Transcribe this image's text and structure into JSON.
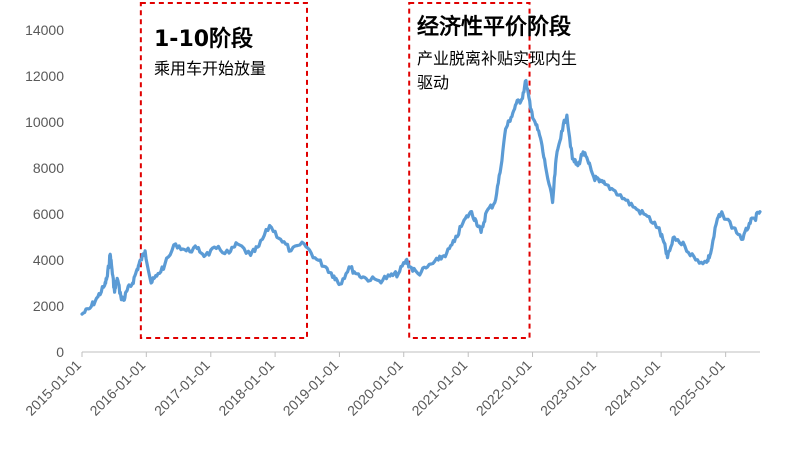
{
  "chart_data": {
    "type": "line",
    "title": "",
    "xlabel": "",
    "ylabel": "",
    "ylim": [
      0,
      14000
    ],
    "yticks": [
      0,
      2000,
      4000,
      6000,
      8000,
      10000,
      12000,
      14000
    ],
    "xlim": [
      "2015-01-01",
      "2025-07-15"
    ],
    "xticks": [
      "2015-01-01",
      "2016-01-01",
      "2017-01-01",
      "2018-01-01",
      "2019-01-01",
      "2020-01-01",
      "2021-01-01",
      "2022-01-01",
      "2023-01-01",
      "2024-01-01",
      "2025-01-01"
    ],
    "grid": false,
    "legend": "none",
    "series_color": "#5B9BD5",
    "annotation_color": "#E00000",
    "x": [
      "2015-01-01",
      "2015-02-15",
      "2015-04-01",
      "2015-05-10",
      "2015-05-25",
      "2015-06-10",
      "2015-06-20",
      "2015-07-05",
      "2015-07-20",
      "2015-08-10",
      "2015-08-26",
      "2015-09-15",
      "2015-10-15",
      "2015-11-10",
      "2015-12-01",
      "2015-12-25",
      "2016-01-28",
      "2016-02-29",
      "2016-04-15",
      "2016-06-15",
      "2016-08-15",
      "2016-10-15",
      "2016-12-01",
      "2017-02-01",
      "2017-04-15",
      "2017-06-01",
      "2017-08-15",
      "2017-10-01",
      "2017-12-01",
      "2018-02-01",
      "2018-04-01",
      "2018-06-15",
      "2018-08-15",
      "2018-10-15",
      "2018-12-01",
      "2019-01-04",
      "2019-02-25",
      "2019-04-10",
      "2019-06-01",
      "2019-08-15",
      "2019-10-15",
      "2019-12-01",
      "2020-01-15",
      "2020-02-05",
      "2020-03-23",
      "2020-05-15",
      "2020-07-15",
      "2020-09-01",
      "2020-10-15",
      "2020-12-01",
      "2021-01-15",
      "2021-02-15",
      "2021-03-15",
      "2021-04-15",
      "2021-06-01",
      "2021-07-01",
      "2021-08-01",
      "2021-09-01",
      "2021-10-01",
      "2021-11-01",
      "2021-11-25",
      "2021-12-20",
      "2022-01-15",
      "2022-02-15",
      "2022-03-15",
      "2022-04-25",
      "2022-05-15",
      "2022-06-15",
      "2022-07-15",
      "2022-08-15",
      "2022-09-15",
      "2022-10-15",
      "2022-11-15",
      "2022-12-15",
      "2023-01-15",
      "2023-02-15",
      "2023-04-15",
      "2023-06-15",
      "2023-08-15",
      "2023-10-15",
      "2023-12-15",
      "2024-01-15",
      "2024-02-06",
      "2024-03-15",
      "2024-05-15",
      "2024-07-15",
      "2024-09-15",
      "2024-10-08",
      "2024-11-15",
      "2024-12-15",
      "2025-02-15",
      "2025-04-09",
      "2025-05-15",
      "2025-06-15",
      "2025-07-15"
    ],
    "series": [
      {
        "values": [
          1650,
          1900,
          2400,
          2900,
          3300,
          4250,
          3600,
          2600,
          3200,
          2400,
          2250,
          2700,
          3000,
          3600,
          4000,
          4400,
          3000,
          3300,
          3800,
          4700,
          4400,
          4500,
          4200,
          4500,
          4300,
          4700,
          4200,
          4600,
          5500,
          4900,
          4400,
          4700,
          4100,
          3700,
          3300,
          2950,
          3700,
          3400,
          3200,
          3100,
          3300,
          3400,
          4000,
          3700,
          3400,
          3700,
          4000,
          4300,
          4800,
          5600,
          6100,
          5700,
          5200,
          6100,
          6500,
          7800,
          9700,
          10200,
          10800,
          11000,
          11800,
          10600,
          10000,
          9300,
          8100,
          6500,
          8400,
          9600,
          10300,
          8400,
          8100,
          8700,
          8200,
          7600,
          7400,
          7300,
          7000,
          6600,
          6200,
          5900,
          5400,
          4800,
          4100,
          5000,
          4600,
          4000,
          3900,
          4300,
          5800,
          6000,
          5400,
          4900,
          5600,
          5800,
          6100
        ]
      }
    ]
  },
  "annotations": [
    {
      "title": "1-10阶段",
      "lines": [
        "乘用车开始放量"
      ],
      "start": "2015-12-01",
      "end": "2018-07-01"
    },
    {
      "title": "经济性平价阶段",
      "lines": [
        "产业脱离补贴实现内生",
        "驱动"
      ],
      "start": "2020-02-01",
      "end": "2021-12-15"
    }
  ]
}
